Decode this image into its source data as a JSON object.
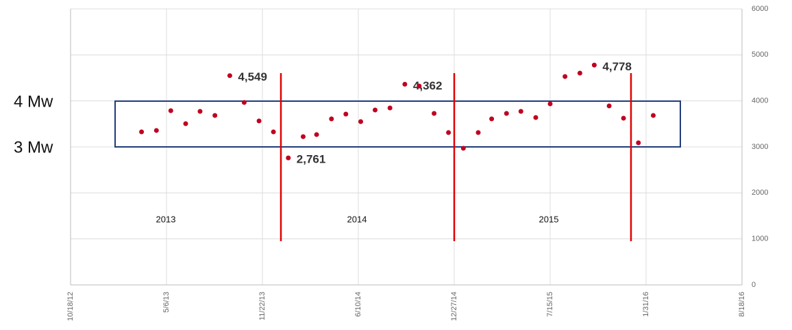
{
  "chart_data": {
    "type": "scatter",
    "x": [
      "2013-03-15",
      "2013-04-15",
      "2013-05-15",
      "2013-06-15",
      "2013-07-15",
      "2013-08-15",
      "2013-09-15",
      "2013-10-15",
      "2013-11-15",
      "2013-12-15",
      "2014-01-15",
      "2014-02-15",
      "2014-03-15",
      "2014-04-15",
      "2014-05-15",
      "2014-06-15",
      "2014-07-15",
      "2014-08-15",
      "2014-09-15",
      "2014-10-15",
      "2014-11-15",
      "2014-12-15",
      "2015-01-15",
      "2015-02-15",
      "2015-03-15",
      "2015-04-15",
      "2015-05-15",
      "2015-06-15",
      "2015-07-15",
      "2015-08-15",
      "2015-09-15",
      "2015-10-15",
      "2015-11-15",
      "2015-12-15",
      "2016-01-15",
      "2016-02-15"
    ],
    "series": [
      {
        "color": "#c00020",
        "values": [
          3327,
          3357,
          3787,
          3505,
          3772,
          3683,
          4549,
          3966,
          3564,
          3327,
          2761,
          3223,
          3268,
          3609,
          3713,
          3550,
          3802,
          3847,
          4362,
          4322,
          3728,
          3312,
          2970,
          3312,
          3609,
          3728,
          3772,
          3639,
          3936,
          4530,
          4604,
          4778,
          3891,
          3624,
          3089,
          3683
        ],
        "value_labels": [
          null,
          null,
          null,
          null,
          null,
          null,
          "4,549",
          null,
          null,
          null,
          "2,761",
          null,
          null,
          null,
          null,
          null,
          null,
          null,
          "4,362",
          null,
          null,
          null,
          null,
          null,
          null,
          null,
          null,
          null,
          null,
          null,
          null,
          "4,778",
          null,
          null,
          null,
          null
        ]
      }
    ],
    "xlim": [
      "2012-10-18",
      "2016-08-18"
    ],
    "xticks": [
      {
        "value": "2012-10-18",
        "label": "10/18/12"
      },
      {
        "value": "2013-05-06",
        "label": "5/6/13"
      },
      {
        "value": "2013-11-22",
        "label": "11/22/13"
      },
      {
        "value": "2014-06-10",
        "label": "6/10/14"
      },
      {
        "value": "2014-12-27",
        "label": "12/27/14"
      },
      {
        "value": "2015-07-15",
        "label": "7/15/15"
      },
      {
        "value": "2016-01-31",
        "label": "1/31/16"
      },
      {
        "value": "2016-08-18",
        "label": "8/18/16"
      }
    ],
    "ylim": [
      0,
      6000
    ],
    "yticks": [
      0,
      1000,
      2000,
      3000,
      4000,
      5000,
      6000
    ],
    "grid": true,
    "annotations": [
      "4 Mw",
      "3 Mw",
      "2013",
      "2014",
      "2015"
    ]
  }
}
